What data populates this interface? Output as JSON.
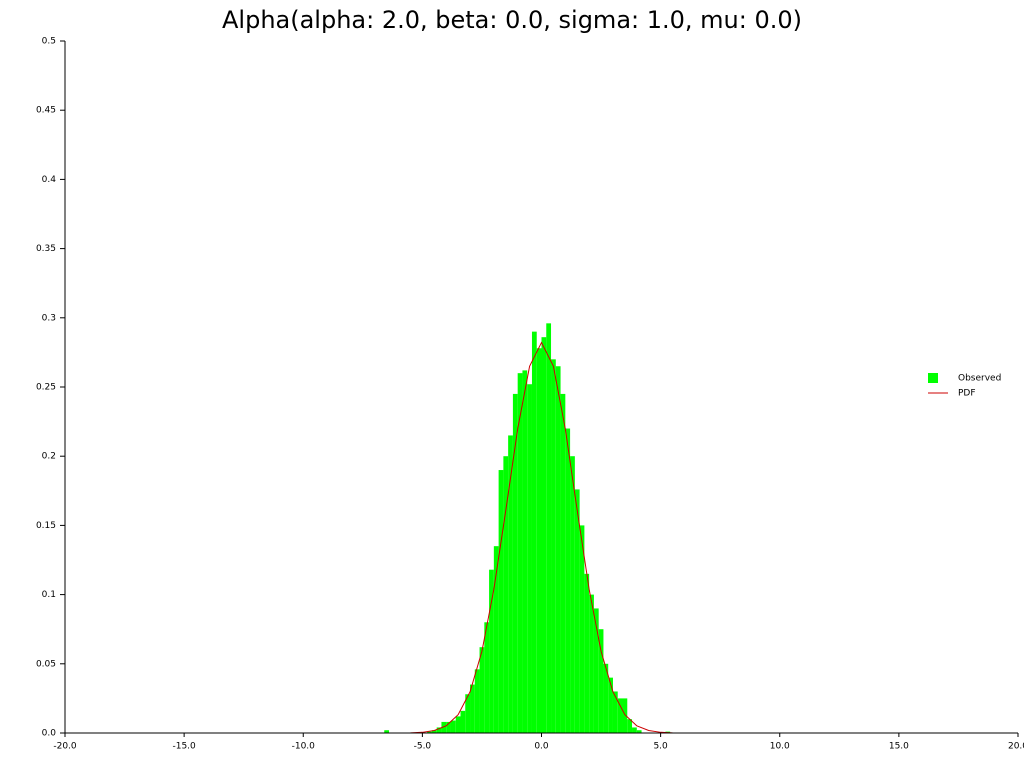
{
  "chart_data": {
    "type": "histogram",
    "title": "Alpha(alpha: 2.0, beta: 0.0, sigma: 1.0, mu: 0.0)",
    "xlim": [
      -20,
      20
    ],
    "ylim": [
      0,
      0.5
    ],
    "xticks": [
      {
        "value": -20,
        "label": "-20.0"
      },
      {
        "value": -15,
        "label": "-15.0"
      },
      {
        "value": -10,
        "label": "-10.0"
      },
      {
        "value": -5,
        "label": "-5.0"
      },
      {
        "value": 0,
        "label": "0.0"
      },
      {
        "value": 5,
        "label": "5.0"
      },
      {
        "value": 10,
        "label": "10.0"
      },
      {
        "value": 15,
        "label": "15.0"
      },
      {
        "value": 20,
        "label": "20.0"
      }
    ],
    "yticks": [
      {
        "value": 0,
        "label": "0.0"
      },
      0.05,
      0.1,
      0.15,
      0.2,
      0.25,
      0.3,
      0.35,
      0.4,
      0.45,
      0.5
    ],
    "grid": false,
    "legend": "right",
    "series": [
      {
        "name": "Observed",
        "type": "histogram",
        "color": "#00ff00",
        "bins": [
          -6.6,
          -6.4,
          -6.2,
          -6.0,
          -5.8,
          -5.6,
          -5.4,
          -5.2,
          -5.0,
          -4.8,
          -4.6,
          -4.4,
          -4.2,
          -4.0,
          -3.8,
          -3.6,
          -3.4,
          -3.2,
          -3.0,
          -2.8,
          -2.6,
          -2.4,
          -2.2,
          -2.0,
          -1.8,
          -1.6,
          -1.4,
          -1.2,
          -1.0,
          -0.8,
          -0.6,
          -0.4,
          -0.2,
          0.0,
          0.2,
          0.4,
          0.6,
          0.8,
          1.0,
          1.2,
          1.4,
          1.6,
          1.8,
          2.0,
          2.2,
          2.4,
          2.6,
          2.8,
          3.0,
          3.2,
          3.4,
          3.6,
          3.8,
          4.0,
          4.2,
          4.4,
          4.6,
          4.8,
          5.0,
          5.2,
          5.4
        ],
        "values": [
          0.002,
          0,
          0,
          0,
          0,
          0,
          0,
          0,
          0,
          0.001,
          0.002,
          0.004,
          0.008,
          0.008,
          0.009,
          0.012,
          0.016,
          0.028,
          0.035,
          0.046,
          0.062,
          0.08,
          0.118,
          0.135,
          0.19,
          0.2,
          0.215,
          0.245,
          0.26,
          0.262,
          0.252,
          0.29,
          0.278,
          0.286,
          0.296,
          0.27,
          0.265,
          0.245,
          0.22,
          0.2,
          0.176,
          0.15,
          0.115,
          0.1,
          0.09,
          0.075,
          0.05,
          0.04,
          0.03,
          0.025,
          0.025,
          0.01,
          0.004,
          0.002,
          0,
          0,
          0,
          0,
          0,
          0.001
        ]
      },
      {
        "name": "PDF",
        "type": "line",
        "color": "#cc0000",
        "x": [
          -20,
          -10,
          -6,
          -5.5,
          -5,
          -4.5,
          -4,
          -3.5,
          -3,
          -2.5,
          -2,
          -1.5,
          -1,
          -0.5,
          0,
          0.5,
          1,
          1.5,
          2,
          2.5,
          3,
          3.5,
          4,
          4.5,
          5,
          5.5,
          6,
          10,
          20
        ],
        "values": [
          0,
          0,
          0,
          0.0001,
          0.0005,
          0.0018,
          0.0052,
          0.0132,
          0.0297,
          0.0591,
          0.1038,
          0.1607,
          0.2197,
          0.265,
          0.2821,
          0.265,
          0.2197,
          0.1607,
          0.1038,
          0.0591,
          0.0297,
          0.0132,
          0.0052,
          0.0018,
          0.0005,
          0.0001,
          0,
          0,
          0
        ]
      }
    ]
  }
}
